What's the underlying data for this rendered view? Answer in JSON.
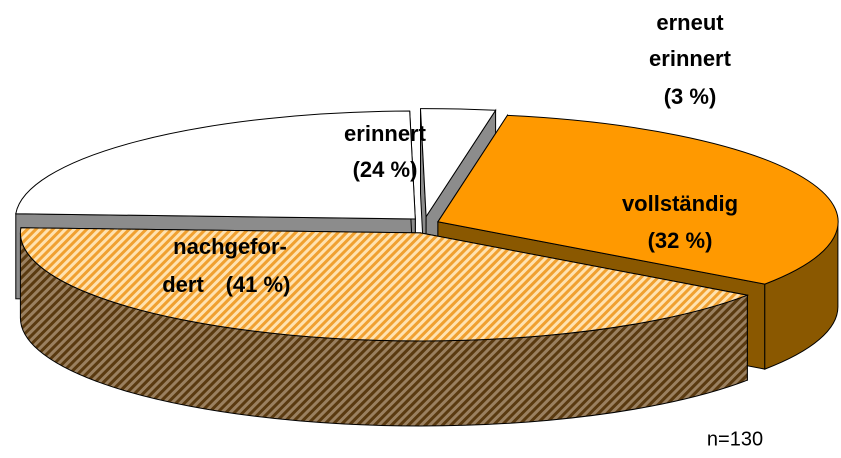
{
  "chart_data": {
    "type": "pie3d",
    "categories": [
      [
        "vollständig"
      ],
      [
        "nachgefor-",
        "dert"
      ],
      [
        "erinnert"
      ],
      [
        "erneut",
        "erinnert"
      ]
    ],
    "values": [
      32,
      41,
      24,
      3
    ],
    "value_labels": [
      "(32 %)",
      "(41 %)",
      "(24 %)",
      "(3 %)"
    ],
    "colors": [
      "#ff9900",
      "hatch-light",
      "#ffffff",
      "#ffffff"
    ],
    "side_colors": [
      "#8a5800",
      "hatch-dark",
      "#8c8c8c",
      "#8c8c8c"
    ],
    "note": "n=130"
  }
}
